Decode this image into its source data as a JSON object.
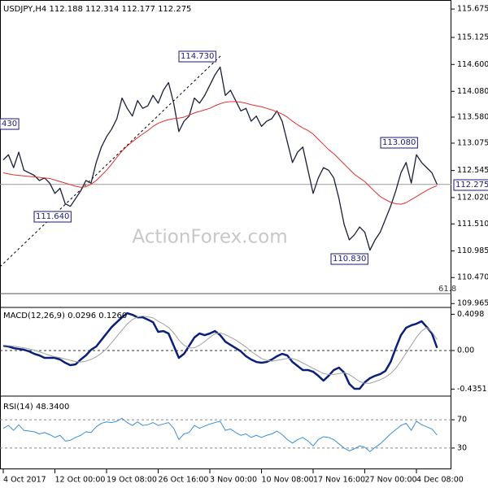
{
  "chart_data": [
    {
      "type": "line",
      "title": "USDJPY,H4  112.188 112.314 112.177 112.275",
      "watermark": "ActionForex.com",
      "categories": [
        "4 Oct 2017",
        null,
        null,
        null,
        null,
        null,
        null,
        null,
        null,
        null,
        "12 Oct 00:00",
        null,
        null,
        null,
        null,
        null,
        null,
        null,
        null,
        null,
        "19 Oct 08:00",
        null,
        null,
        null,
        null,
        null,
        null,
        null,
        null,
        null,
        "26 Oct 16:00",
        null,
        null,
        null,
        null,
        null,
        null,
        null,
        null,
        null,
        "3 Nov 00:00",
        null,
        null,
        null,
        null,
        null,
        null,
        null,
        null,
        null,
        "10 Nov 08:00",
        null,
        null,
        null,
        null,
        null,
        null,
        null,
        null,
        null,
        "17 Nov 16:00",
        null,
        null,
        null,
        null,
        null,
        null,
        null,
        null,
        null,
        "27 Nov 00:00",
        null,
        null,
        null,
        null,
        null,
        null,
        null,
        null,
        null,
        "4 Dec 08:00",
        null,
        null,
        null,
        null
      ],
      "series": [
        {
          "color": "#1a1f3a",
          "values": [
            112.75,
            112.85,
            112.6,
            112.9,
            112.55,
            112.5,
            112.45,
            112.35,
            112.4,
            112.3,
            112.1,
            112.2,
            111.9,
            111.85,
            112.0,
            112.15,
            112.35,
            112.3,
            112.7,
            113.0,
            113.2,
            113.35,
            113.55,
            113.95,
            113.75,
            113.6,
            113.9,
            113.75,
            113.8,
            114.0,
            113.85,
            114.1,
            114.25,
            113.85,
            113.3,
            113.5,
            113.6,
            113.95,
            113.85,
            114.0,
            114.2,
            114.4,
            114.55,
            114.0,
            114.1,
            113.9,
            113.7,
            113.75,
            113.5,
            113.6,
            113.4,
            113.5,
            113.55,
            113.7,
            113.5,
            113.1,
            112.7,
            112.9,
            113.0,
            112.55,
            112.1,
            112.4,
            112.6,
            112.55,
            112.4,
            112.0,
            111.5,
            111.2,
            111.3,
            111.45,
            111.35,
            111.0,
            111.2,
            111.35,
            111.6,
            111.85,
            112.15,
            112.5,
            112.7,
            112.3,
            112.85,
            112.7,
            112.6,
            112.5,
            112.275
          ]
        },
        {
          "color": "#e03030",
          "values": [
            112.5,
            112.48,
            112.46,
            112.45,
            112.44,
            112.43,
            112.42,
            112.41,
            112.4,
            112.39,
            112.36,
            112.33,
            112.3,
            112.27,
            112.24,
            112.22,
            112.23,
            112.28,
            112.35,
            112.45,
            112.55,
            112.67,
            112.8,
            112.92,
            113.02,
            113.1,
            113.18,
            113.25,
            113.32,
            113.4,
            113.46,
            113.5,
            113.53,
            113.55,
            113.56,
            113.58,
            113.62,
            113.66,
            113.69,
            113.72,
            113.75,
            113.8,
            113.84,
            113.87,
            113.88,
            113.88,
            113.87,
            113.85,
            113.82,
            113.8,
            113.78,
            113.75,
            113.72,
            113.68,
            113.64,
            113.58,
            113.5,
            113.43,
            113.37,
            113.32,
            113.25,
            113.15,
            113.05,
            112.95,
            112.87,
            112.77,
            112.67,
            112.57,
            112.47,
            112.4,
            112.33,
            112.23,
            112.13,
            112.04,
            111.98,
            111.93,
            111.9,
            111.89,
            111.92,
            111.98,
            112.04,
            112.1,
            112.16,
            112.21,
            112.25
          ]
        }
      ],
      "ylim": [
        109.89,
        115.85
      ],
      "yticks": [
        115.675,
        {
          "value": 115.125,
          "label": "115.125"
        },
        {
          "value": 114.6,
          "label": "114.600"
        },
        {
          "value": 114.08,
          "label": "114.080"
        },
        {
          "value": 113.58,
          "label": "113.580"
        },
        113.075,
        112.545,
        {
          "value": 112.02,
          "label": "112.020"
        },
        {
          "value": 111.51,
          "label": "111.510"
        },
        110.985,
        {
          "value": 110.47,
          "label": "110.470"
        },
        109.965
      ],
      "annotations": [
        "114.730",
        "111.640",
        "110.830",
        "113.080",
        "430",
        "112.275",
        "61.8"
      ]
    },
    {
      "type": "line",
      "title": "MACD(12,26,9) 0.0296 0.1260",
      "zero_line": true,
      "series": [
        {
          "color": "#0a1f7a",
          "values": [
            0.055,
            0.046,
            0.028,
            0.018,
            0.009,
            -0.009,
            -0.037,
            -0.055,
            -0.083,
            -0.083,
            -0.083,
            -0.101,
            -0.138,
            -0.165,
            -0.156,
            -0.101,
            -0.055,
            0.009,
            0.046,
            0.119,
            0.193,
            0.266,
            0.321,
            0.376,
            0.422,
            0.404,
            0.376,
            0.376,
            0.349,
            0.321,
            0.211,
            0.22,
            0.193,
            0.055,
            -0.083,
            -0.037,
            0.055,
            0.147,
            0.193,
            0.174,
            0.193,
            0.22,
            0.174,
            0.101,
            0.064,
            0.028,
            -0.009,
            -0.064,
            -0.101,
            -0.129,
            -0.138,
            -0.129,
            -0.101,
            -0.064,
            -0.037,
            -0.055,
            -0.129,
            -0.174,
            -0.22,
            -0.22,
            -0.239,
            -0.285,
            -0.34,
            -0.285,
            -0.22,
            -0.193,
            -0.248,
            -0.376,
            -0.432,
            -0.432,
            -0.358,
            -0.312,
            -0.285,
            -0.266,
            -0.23,
            -0.129,
            0.028,
            0.174,
            0.257,
            0.285,
            0.303,
            0.331,
            0.266,
            0.193,
            0.03
          ]
        },
        {
          "color": "#a0a0a0",
          "values": [
            0.06,
            0.055,
            0.05,
            0.04,
            0.03,
            0.02,
            0.005,
            -0.015,
            -0.035,
            -0.055,
            -0.07,
            -0.08,
            -0.095,
            -0.11,
            -0.125,
            -0.13,
            -0.12,
            -0.1,
            -0.07,
            -0.03,
            0.02,
            0.09,
            0.16,
            0.23,
            0.3,
            0.35,
            0.38,
            0.39,
            0.38,
            0.37,
            0.33,
            0.3,
            0.26,
            0.2,
            0.12,
            0.06,
            0.03,
            0.03,
            0.06,
            0.1,
            0.15,
            0.19,
            0.2,
            0.18,
            0.15,
            0.12,
            0.08,
            0.04,
            -0.01,
            -0.05,
            -0.09,
            -0.11,
            -0.12,
            -0.11,
            -0.1,
            -0.09,
            -0.09,
            -0.11,
            -0.14,
            -0.17,
            -0.2,
            -0.23,
            -0.26,
            -0.27,
            -0.27,
            -0.26,
            -0.25,
            -0.27,
            -0.31,
            -0.35,
            -0.37,
            -0.37,
            -0.35,
            -0.33,
            -0.3,
            -0.26,
            -0.2,
            -0.12,
            -0.03,
            0.06,
            0.15,
            0.22,
            0.26,
            0.21,
            0.126
          ]
        }
      ],
      "ylim": [
        -0.496,
        0.487
      ],
      "yticks": [
        0.4098,
        {
          "value": 0,
          "label": "0.00"
        },
        -0.4351
      ]
    },
    {
      "type": "line",
      "title": "RSI(14) 48.3400",
      "grid": true,
      "series": [
        {
          "color": "#3a8fd8",
          "values": [
            58,
            62,
            55,
            63,
            55,
            54,
            53,
            50,
            52,
            49,
            45,
            48,
            40,
            41,
            45,
            48,
            53,
            52,
            60,
            65,
            67,
            66,
            68,
            72,
            66,
            62,
            67,
            62,
            63,
            66,
            62,
            64,
            66,
            58,
            42,
            50,
            52,
            62,
            58,
            61,
            64,
            66,
            68,
            55,
            57,
            52,
            48,
            50,
            45,
            48,
            45,
            48,
            50,
            54,
            49,
            42,
            37,
            42,
            45,
            40,
            33,
            42,
            46,
            45,
            42,
            36,
            30,
            26,
            29,
            33,
            31,
            25,
            31,
            36,
            43,
            50,
            56,
            62,
            65,
            55,
            68,
            63,
            60,
            57,
            48.34
          ]
        }
      ],
      "ylim": [
        0,
        100
      ],
      "yticks": [
        70,
        30
      ]
    }
  ]
}
